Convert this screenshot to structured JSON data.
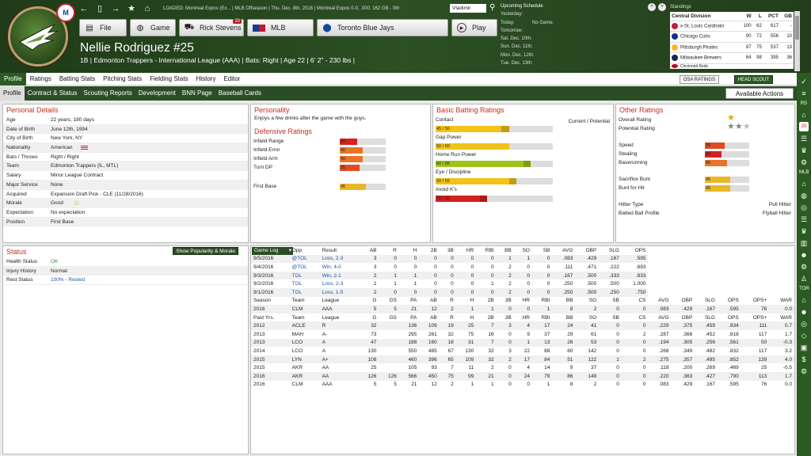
{
  "topbar": {
    "status": "LOADED: Montreal Expos (Ex... | MLB Offseason | Thu. Dec. 8th, 2016 | Montreal Expos  0-0, .000, 162 GB - 0th",
    "search_value": "Vladimir",
    "nav_icons": [
      "back-arrow-icon",
      "page-icon",
      "forward-arrow-icon",
      "star-icon",
      "home-icon"
    ]
  },
  "header_buttons": [
    {
      "name": "file",
      "label": "File",
      "icon": "file-icon"
    },
    {
      "name": "game",
      "label": "Game",
      "icon": "globe-icon"
    },
    {
      "name": "manager",
      "label": "Rick Stevens",
      "icon": "car-icon",
      "badge": "20"
    },
    {
      "name": "league",
      "label": "MLB",
      "icon": "mlb-icon"
    },
    {
      "name": "team",
      "label": "Toronto Blue Jays",
      "icon": "bluejays-icon"
    },
    {
      "name": "play",
      "label": "Play",
      "icon": "play-icon"
    }
  ],
  "player": {
    "name": "Nellie Rodriguez  #25",
    "subline": "1B | Edmonton Trappers - International League (AAA)  |  Bats: Right  |  Age 22  |  6' 2\" - 230 lbs  |"
  },
  "schedule": {
    "title": "Upcoming Schedule",
    "rows": [
      {
        "day": "Yesterday:",
        "game": ""
      },
      {
        "day": "Today:",
        "game": "No Game."
      },
      {
        "day": "Tomorrow:",
        "game": ""
      },
      {
        "day": "Sat. Dec. 10th:",
        "game": ""
      },
      {
        "day": "Sun. Dec. 11th:",
        "game": ""
      },
      {
        "day": "Mon. Dec. 12th:",
        "game": ""
      },
      {
        "day": "Tue. Dec. 13th:",
        "game": ""
      }
    ]
  },
  "standings": {
    "title": "Standings",
    "division": "Central Division",
    "columns": [
      "W",
      "L",
      "PCT",
      "GB"
    ],
    "rows": [
      {
        "team": "x-St. Louis Cardinals",
        "w": "100",
        "l": "62",
        "pct": "617",
        "gb": "-",
        "color": "#c41e3a"
      },
      {
        "team": "Chicago Cubs",
        "w": "90",
        "l": "72",
        "pct": "556",
        "gb": "10",
        "color": "#0e3386"
      },
      {
        "team": "Pittsburgh Pirates",
        "w": "87",
        "l": "75",
        "pct": "537",
        "gb": "13",
        "color": "#fdb827"
      },
      {
        "team": "Milwaukee Brewers",
        "w": "64",
        "w2": "",
        "l": "98",
        "pct": "395",
        "gb": "36",
        "color": "#12284b"
      },
      {
        "team": "Cincinnati Reds",
        "w": "",
        "l": "",
        "pct": "",
        "gb": "",
        "color": "#c6011f"
      }
    ]
  },
  "tabs_primary": [
    "Profile",
    "Ratings",
    "Batting Stats",
    "Pitching Stats",
    "Fielding Stats",
    "History",
    "Editor"
  ],
  "osa_label": "OSA RATINGS",
  "scout_label": "HEAD SCOUT",
  "tabs_secondary": [
    "Profile",
    "Contract & Status",
    "Scouting Reports",
    "Development",
    "BNN Page",
    "Baseball Cards"
  ],
  "actions_label": "Available Actions",
  "personal": {
    "title": "Personal Details",
    "rows": [
      {
        "k": "Age",
        "v": "22 years, 180 days"
      },
      {
        "k": "Date of Birth",
        "v": "June 12th, 1994"
      },
      {
        "k": "City of Birth",
        "v": "New York, NY"
      },
      {
        "k": "Nationality",
        "v": "American",
        "link": true
      },
      {
        "k": "Bats / Throws",
        "v": "Right / Right"
      },
      {
        "k": "Team",
        "v": "Edmonton Trappers (IL, MTL)",
        "link": true
      },
      {
        "k": "Salary",
        "v": "Minor League Contract"
      },
      {
        "k": "Major Service",
        "v": "None"
      },
      {
        "k": "Acquired",
        "v": "Expansion Draft Pick - CLE (11/28/2016)"
      },
      {
        "k": "Morale",
        "v": "Good"
      },
      {
        "k": "Expectation",
        "v": "No expectation"
      },
      {
        "k": "Position",
        "v": "First Base"
      }
    ]
  },
  "personality": {
    "title": "Personality",
    "text": "Enjoys a few drinks after the game with the guys.",
    "defensive_title": "Defensive Ratings",
    "defensive": [
      {
        "label": "Infield Range",
        "value": 30,
        "color": "#d42020"
      },
      {
        "label": "Infield Error",
        "value": 40,
        "color": "#e8742a"
      },
      {
        "label": "Infield Arm",
        "value": 40,
        "color": "#e8742a"
      },
      {
        "label": "Turn DP",
        "value": 35,
        "color": "#e04a22"
      }
    ],
    "first_base": {
      "label": "First Base",
      "value": 45,
      "color": "#e8b72a"
    }
  },
  "batting": {
    "title": "Basic Batting Ratings",
    "header": "Current / Potential",
    "rows": [
      {
        "label": "Contact",
        "cur": 45,
        "pot": 50,
        "text": "45 / 50",
        "color": "#f2c319"
      },
      {
        "label": "Gap Power",
        "cur": 50,
        "pot": 50,
        "text": "50 / 50",
        "color": "#f2c319"
      },
      {
        "label": "Home Run Power",
        "cur": 60,
        "pot": 65,
        "text": "60 / 65",
        "color": "#9ec41c"
      },
      {
        "label": "Eye / Discipline",
        "cur": 50,
        "pot": 55,
        "text": "50 / 55",
        "color": "#f2c319"
      },
      {
        "label": "Avoid K's",
        "cur": 30,
        "pot": 35,
        "text": "30 / 35",
        "color": "#d42020"
      }
    ]
  },
  "other": {
    "title": "Other Ratings",
    "overall_label": "Overall Rating",
    "potential_label": "Potential Rating",
    "overall_stars": 1,
    "potential_stars": 2.5,
    "rows": [
      {
        "label": "Speed",
        "value": 35,
        "color": "#e04a22"
      },
      {
        "label": "Stealing",
        "value": 30,
        "color": "#d42020"
      },
      {
        "label": "Baserunning",
        "value": 40,
        "color": "#e8742a"
      }
    ],
    "rows2": [
      {
        "label": "Sacrifice Bunt",
        "value": 45,
        "color": "#e8b72a"
      },
      {
        "label": "Bunt for Hit",
        "value": 45,
        "color": "#e8b72a"
      }
    ],
    "hitter_type_label": "Hitter Type",
    "hitter_type": "Pull Hitter",
    "batted_ball_label": "Batted Ball Profile",
    "batted_ball": "Flyball Hitter"
  },
  "status": {
    "title": "Status",
    "button": "Show Popularity & Morale",
    "rows": [
      {
        "k": "Health Status",
        "v": "OK",
        "color": "#2a9a2a"
      },
      {
        "k": "Injury History",
        "v": "Normal",
        "color": "#222"
      },
      {
        "k": "Rest Status",
        "v": "100% - Rested",
        "color": "#1b57a8"
      }
    ]
  },
  "gamelog": {
    "selector": "Game Log",
    "columns": [
      "Opp",
      "Result",
      "AB",
      "R",
      "H",
      "2B",
      "3B",
      "HR",
      "RBI",
      "BB",
      "SO",
      "SB",
      "AVG",
      "OBP",
      "SLG",
      "OPS"
    ],
    "rows": [
      [
        "9/5/2016",
        "@TOL",
        "Loss, 2-3",
        "3",
        "0",
        "0",
        "0",
        "0",
        "0",
        "0",
        "1",
        "1",
        "0",
        ".083",
        ".429",
        ".167",
        ".595"
      ],
      [
        "9/4/2016",
        "@TOL",
        "Win, 4-0",
        "3",
        "0",
        "0",
        "0",
        "0",
        "0",
        "0",
        "2",
        "0",
        "0",
        ".111",
        ".471",
        ".222",
        ".693"
      ],
      [
        "9/3/2016",
        "TOL",
        "Win, 2-1",
        "2",
        "1",
        "1",
        "0",
        "0",
        "0",
        "0",
        "2",
        "0",
        "0",
        ".167",
        ".500",
        ".333",
        ".833"
      ],
      [
        "9/2/2016",
        "TOL",
        "Loss, 2-3",
        "2",
        "1",
        "1",
        "0",
        "0",
        "0",
        "1",
        "2",
        "0",
        "0",
        ".250",
        ".500",
        ".500",
        "1.000"
      ],
      [
        "9/1/2016",
        "TOL",
        "Loss, 1-5",
        "2",
        "0",
        "0",
        "0",
        "0",
        "0",
        "0",
        "2",
        "0",
        "0",
        ".250",
        ".500",
        ".250",
        ".750"
      ]
    ],
    "season_columns": [
      "Season",
      "Team",
      "League",
      "G",
      "GS",
      "PA",
      "AB",
      "R",
      "H",
      "2B",
      "3B",
      "HR",
      "RBI",
      "BB",
      "SO",
      "SB",
      "CS",
      "AVG",
      "OBP",
      "SLG",
      "OPS",
      "OPS+",
      "WAR"
    ],
    "season_rows": [
      [
        "2016",
        "CLM",
        "AAA",
        "5",
        "5",
        "21",
        "12",
        "2",
        "1",
        "1",
        "0",
        "0",
        "1",
        "8",
        "2",
        "0",
        "0",
        ".083",
        ".429",
        ".167",
        ".595",
        "76",
        "0.0"
      ]
    ],
    "past_columns": [
      "Past Yrs.",
      "Team",
      "League",
      "G",
      "GS",
      "PA",
      "AB",
      "R",
      "H",
      "2B",
      "3B",
      "HR",
      "RBI",
      "BB",
      "SO",
      "SB",
      "CS",
      "AVG",
      "OBP",
      "SLG",
      "OPS",
      "OPS+",
      "WAR"
    ],
    "past_rows": [
      [
        "2012",
        "ACLE",
        "R",
        "32",
        "",
        "136",
        "109",
        "19",
        "25",
        "7",
        "3",
        "4",
        "17",
        "24",
        "41",
        "0",
        "0",
        ".229",
        ".375",
        ".459",
        ".834",
        "111",
        "0.7"
      ],
      [
        "2013",
        "MAH",
        "A-",
        "73",
        "",
        "295",
        "261",
        "32",
        "75",
        "16",
        "0",
        "9",
        "37",
        "29",
        "61",
        "0",
        "2",
        ".287",
        ".366",
        ".452",
        ".818",
        "117",
        "1.7"
      ],
      [
        "2013",
        "LCO",
        "A",
        "47",
        "",
        "188",
        "160",
        "18",
        "31",
        "7",
        "0",
        "1",
        "13",
        "26",
        "53",
        "0",
        "0",
        ".194",
        ".305",
        ".256",
        ".561",
        "50",
        "-0.3"
      ],
      [
        "2014",
        "LCO",
        "A",
        "130",
        "",
        "550",
        "485",
        "67",
        "130",
        "32",
        "3",
        "22",
        "88",
        "60",
        "142",
        "0",
        "0",
        ".268",
        ".349",
        ".482",
        ".832",
        "117",
        "3.2"
      ],
      [
        "2015",
        "LYN",
        "A+",
        "108",
        "",
        "460",
        "396",
        "65",
        "109",
        "32",
        "2",
        "17",
        "84",
        "51",
        "122",
        "1",
        "2",
        ".275",
        ".357",
        ".495",
        ".852",
        "139",
        "4.0"
      ],
      [
        "2015",
        "AKR",
        "AA",
        "25",
        "",
        "105",
        "93",
        "7",
        "11",
        "2",
        "0",
        "4",
        "14",
        "9",
        "37",
        "0",
        "0",
        ".118",
        ".200",
        ".269",
        ".469",
        "25",
        "-0.5"
      ],
      [
        "2016",
        "AKR",
        "AA",
        "126",
        "126",
        "566",
        "450",
        "75",
        "99",
        "21",
        "0",
        "24",
        "79",
        "86",
        "149",
        "0",
        "0",
        ".220",
        ".363",
        ".427",
        ".790",
        "113",
        "1.7"
      ],
      [
        "2016",
        "CLM",
        "AAA",
        "5",
        "5",
        "21",
        "12",
        "2",
        "1",
        "1",
        "0",
        "0",
        "1",
        "8",
        "2",
        "0",
        "0",
        ".083",
        ".429",
        ".167",
        ".595",
        "76",
        "0.0"
      ]
    ]
  },
  "right_sidebar": {
    "labels": [
      "RS",
      "MLB",
      "TOR"
    ],
    "badge": "20"
  }
}
